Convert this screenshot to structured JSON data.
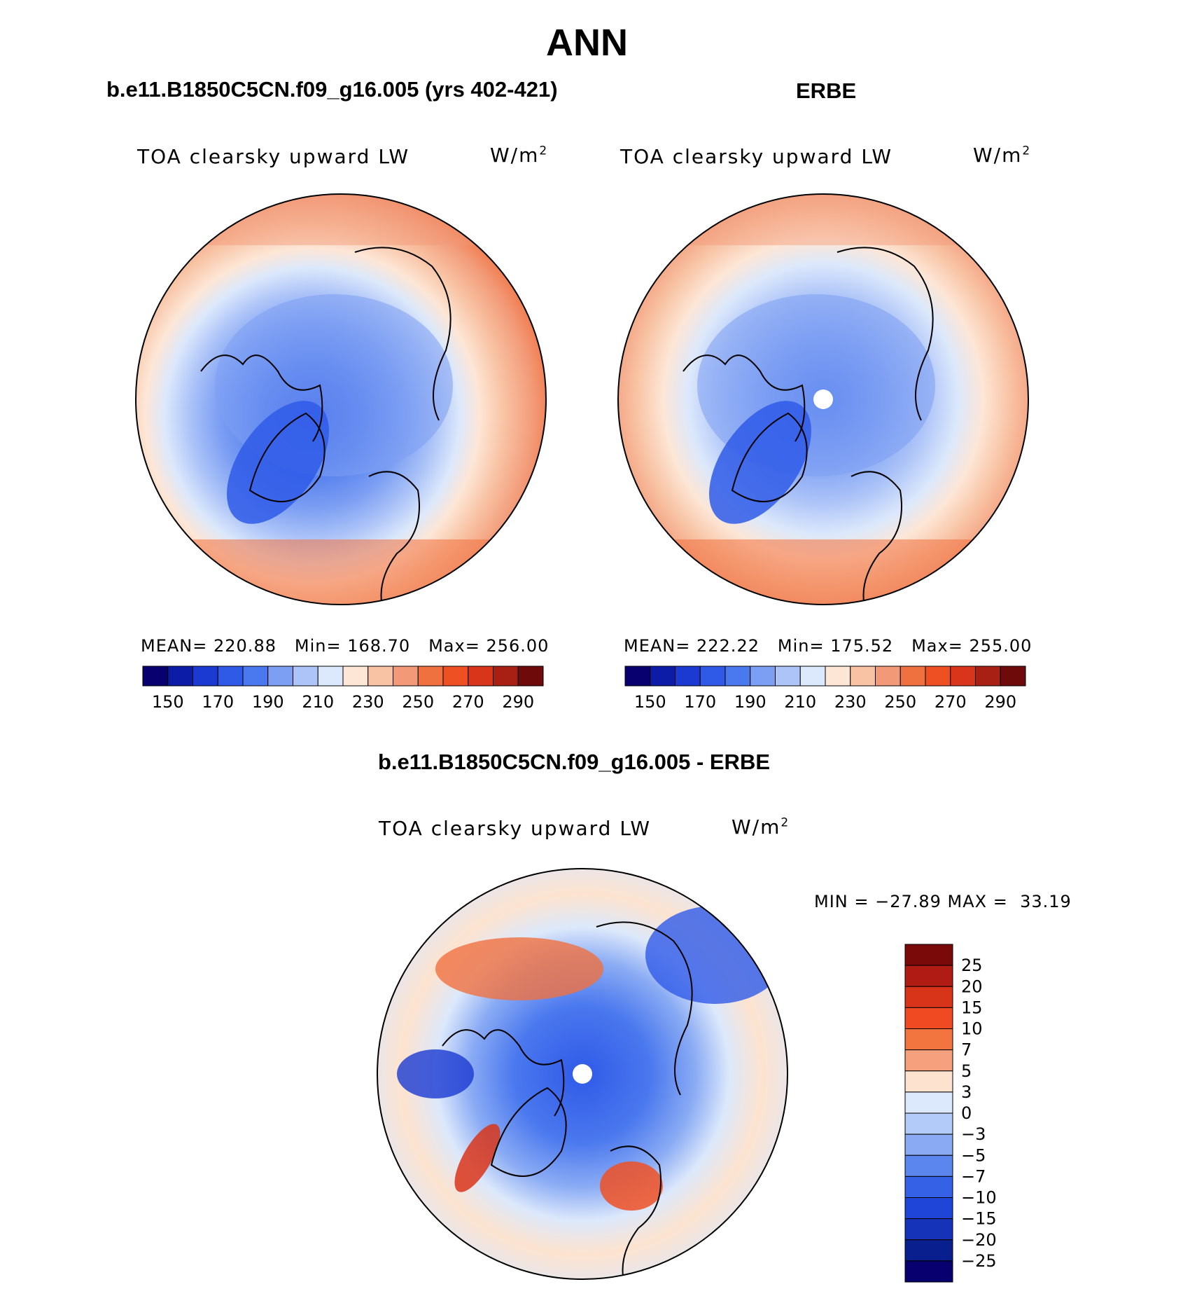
{
  "title": "ANN",
  "panels": {
    "model": {
      "header": "b.e11.B1850C5CN.f09_g16.005 (yrs 402-421)",
      "variable": "TOA clearsky upward LW",
      "units_base": "W/m",
      "units_exp": "2",
      "stats": {
        "mean_label": "MEAN=",
        "mean": "220.88",
        "min_label": "Min=",
        "min": "168.70",
        "max_label": "Max=",
        "max": "256.00"
      }
    },
    "obs": {
      "header": "ERBE",
      "variable": "TOA clearsky upward LW",
      "units_base": "W/m",
      "units_exp": "2",
      "stats": {
        "mean_label": "MEAN=",
        "mean": "222.22",
        "min_label": "Min=",
        "min": "175.52",
        "max_label": "Max=",
        "max": "255.00"
      }
    },
    "diff": {
      "header": "b.e11.B1850C5CN.f09_g16.005 - ERBE",
      "variable": "TOA clearsky upward LW",
      "units_base": "W/m",
      "units_exp": "2",
      "minmax_text": "MIN = −27.89 MAX =  33.19"
    }
  },
  "chart_data": [
    {
      "type": "heatmap",
      "projection": "north-polar-stereographic",
      "title": "b.e11.B1850C5CN.f09_g16.005 (yrs 402-421)",
      "variable": "TOA clearsky upward LW",
      "units": "W/m2",
      "mean": 220.88,
      "min": 168.7,
      "max": 256.0,
      "colorbar_ticks": [
        "150",
        "170",
        "190",
        "210",
        "230",
        "250",
        "270",
        "290"
      ],
      "colorbar_levels": [
        150,
        160,
        170,
        180,
        190,
        200,
        210,
        220,
        230,
        240,
        250,
        260,
        270,
        280,
        290
      ],
      "colorbar_colors": [
        "#08006e",
        "#0c1ca6",
        "#1a3ad2",
        "#2f5ae8",
        "#4a78ee",
        "#7d9ff3",
        "#adc4f8",
        "#dce8fb",
        "#fde6d6",
        "#f8c3a4",
        "#f29a78",
        "#f07140",
        "#ef5023",
        "#d9351a",
        "#a81f14",
        "#6e0a0a"
      ]
    },
    {
      "type": "heatmap",
      "projection": "north-polar-stereographic",
      "title": "ERBE",
      "variable": "TOA clearsky upward LW",
      "units": "W/m2",
      "mean": 222.22,
      "min": 175.52,
      "max": 255.0,
      "colorbar_ticks": [
        "150",
        "170",
        "190",
        "210",
        "230",
        "250",
        "270",
        "290"
      ],
      "colorbar_levels": [
        150,
        160,
        170,
        180,
        190,
        200,
        210,
        220,
        230,
        240,
        250,
        260,
        270,
        280,
        290
      ],
      "colorbar_colors": [
        "#08006e",
        "#0c1ca6",
        "#1a3ad2",
        "#2f5ae8",
        "#4a78ee",
        "#7d9ff3",
        "#adc4f8",
        "#dce8fb",
        "#fde6d6",
        "#f8c3a4",
        "#f29a78",
        "#f07140",
        "#ef5023",
        "#d9351a",
        "#a81f14",
        "#6e0a0a"
      ]
    },
    {
      "type": "heatmap",
      "projection": "north-polar-stereographic",
      "title": "b.e11.B1850C5CN.f09_g16.005 - ERBE",
      "variable": "TOA clearsky upward LW",
      "units": "W/m2",
      "min": -27.89,
      "max": 33.19,
      "colorbar_ticks": [
        "25",
        "20",
        "15",
        "10",
        "7",
        "5",
        "3",
        "0",
        "−3",
        "−5",
        "−7",
        "−10",
        "−15",
        "−20",
        "−25"
      ],
      "colorbar_colors": [
        "#7a0a0a",
        "#b01c14",
        "#d8341a",
        "#f04a22",
        "#f2743f",
        "#f6a07e",
        "#fde3cf",
        "#dce8fb",
        "#b3cbf8",
        "#8aabf4",
        "#5b86ee",
        "#3461e6",
        "#1f45d8",
        "#1433b8",
        "#0a1f8e",
        "#08006e"
      ]
    }
  ]
}
